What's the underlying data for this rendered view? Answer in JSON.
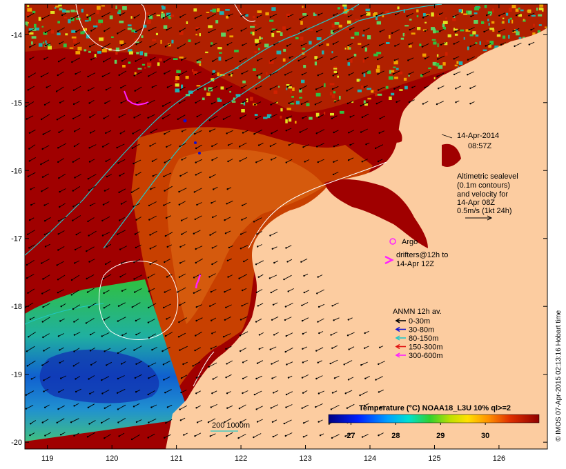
{
  "map": {
    "lon_ticks": [
      "119",
      "120",
      "121",
      "122",
      "123",
      "124",
      "125",
      "126"
    ],
    "lon_values": [
      119,
      120,
      121,
      122,
      123,
      124,
      125,
      126
    ],
    "lat_ticks": [
      "-14",
      "-15",
      "-16",
      "-17",
      "-18",
      "-19",
      "-20"
    ],
    "lat_values": [
      -14,
      -15,
      -16,
      -17,
      -18,
      -19,
      -20
    ],
    "lon_range": [
      118.65,
      126.75
    ],
    "lat_range": [
      -20.1,
      -13.55
    ]
  },
  "timestamp": {
    "date": "14-Apr-2014",
    "time": "08:57Z"
  },
  "altimetry": {
    "lines": [
      "Altimetric sealevel",
      "(0.1m contours)",
      "and velocity for",
      "14-Apr 08Z",
      "0.5m/s (1kt 24h)"
    ]
  },
  "argo_label": "Argo",
  "drifters": {
    "lines": [
      "drifters@12h to",
      "14-Apr 12Z"
    ]
  },
  "anmn": {
    "title": "ANMN 12h av.",
    "items": [
      {
        "label": "0-30m",
        "color": "#000000"
      },
      {
        "label": "30-80m",
        "color": "#1010d0"
      },
      {
        "label": "80-150m",
        "color": "#20c8c8"
      },
      {
        "label": "150-300m",
        "color": "#e01010"
      },
      {
        "label": "300-600m",
        "color": "#ff20ff"
      }
    ]
  },
  "colorbar": {
    "title": "Temperature (°C) NOAA18_L3U 10% ql>=2",
    "tick_labels": [
      "27",
      "28",
      "29",
      "30"
    ],
    "tick_values": [
      27,
      28,
      29,
      30
    ],
    "range": [
      26.5,
      31.2
    ]
  },
  "scale_label": "200  1000m",
  "credit": "© IMOS 07-Apr-2015 02:13:16 Hobart time",
  "colors": {
    "land": "#fccca0",
    "hot": "#a00000",
    "warm": "#d06000",
    "isobath": "#20c8c8",
    "contour": "#ffffff"
  }
}
